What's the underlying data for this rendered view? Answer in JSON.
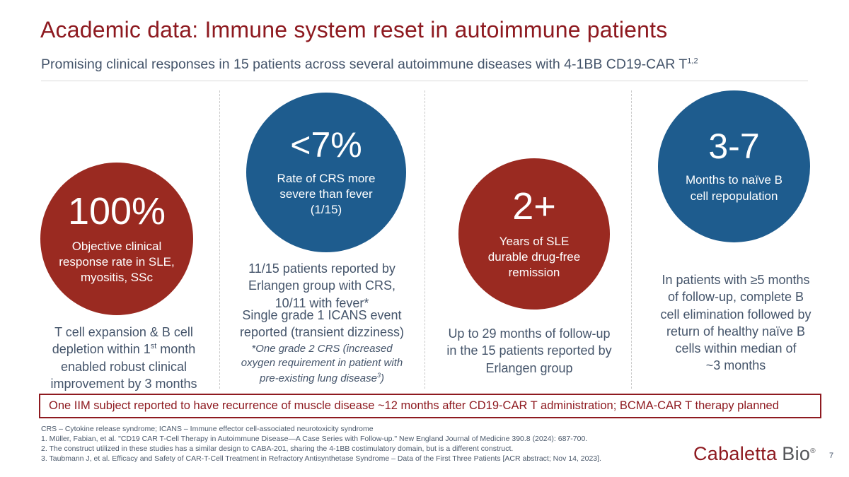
{
  "colors": {
    "accent_red": "#9a2a21",
    "accent_blue": "#1e5c8e",
    "title_red": "#8e1a20",
    "body_text": "#44546a"
  },
  "slide": {
    "title": "Academic data: Immune system reset in autoimmune patients",
    "subtitle": {
      "text": "Promising clinical responses in 15 patients across several autoimmune diseases with 4-1BB CD19-CAR T",
      "superscript": "1,2"
    },
    "page_number": "7"
  },
  "columns": [
    {
      "circle": {
        "color": "red",
        "stat": "100%",
        "label": "Objective clinical\nresponse rate in SLE,\nmyositis, SSc"
      },
      "body": {
        "part1": "T cell expansion & B cell\ndepletion within 1",
        "sup": "st",
        "part2": " month\nenabled robust clinical\nimprovement by 3 months"
      }
    },
    {
      "circle": {
        "color": "blue",
        "stat": "<7%",
        "label": "Rate of CRS more\nsevere than fever\n(1/15)"
      },
      "body": {
        "p1": "11/15 patients reported by\nErlangen group with CRS,\n10/11 with fever*",
        "p2": "Single grade 1 ICANS event\nreported (transient dizziness)",
        "note_part1": "*One grade 2 CRS (increased\noxygen requirement in patient with\npre-existing lung disease",
        "note_sup": "3",
        "note_part2": ")"
      }
    },
    {
      "circle": {
        "color": "red",
        "stat": "2+",
        "label": "Years of SLE\ndurable drug-free\nremission"
      },
      "body": {
        "p1": "Up to 29 months of follow-up\nin the 15 patients reported by\nErlangen group"
      }
    },
    {
      "circle": {
        "color": "blue",
        "stat": "3-7",
        "label": "Months to naïve B\ncell repopulation"
      },
      "body": {
        "p1": "In patients with ≥5 months\nof follow-up, complete B\ncell elimination followed by\nreturn of healthy naïve B\ncells within median of\n~3 months"
      }
    }
  ],
  "callout": {
    "text": "One IIM subject reported to have recurrence of muscle disease ~12 months after CD19-CAR T administration; BCMA-CAR T therapy planned"
  },
  "footnotes": [
    "CRS – Cytokine release syndrome; ICANS – Immune effector cell-associated neurotoxicity syndrome",
    "1. Müller, Fabian, et al. \"CD19 CAR T-Cell Therapy in Autoimmune Disease—A Case Series with Follow-up.\" New England Journal of Medicine 390.8 (2024): 687-700.",
    "2. The construct utilized in these studies has a similar design to CABA-201, sharing the 4-1BB costimulatory domain, but is a different construct.",
    "3. Taubmann J, et al. Efficacy and Safety of CAR-T-Cell Treatment in Refractory Antisynthetase Syndrome – Data of the First Three Patients [ACR abstract; Nov 14, 2023]."
  ],
  "logo": {
    "brand": "Cabaletta",
    "suffix": "Bio",
    "registered": "®"
  }
}
